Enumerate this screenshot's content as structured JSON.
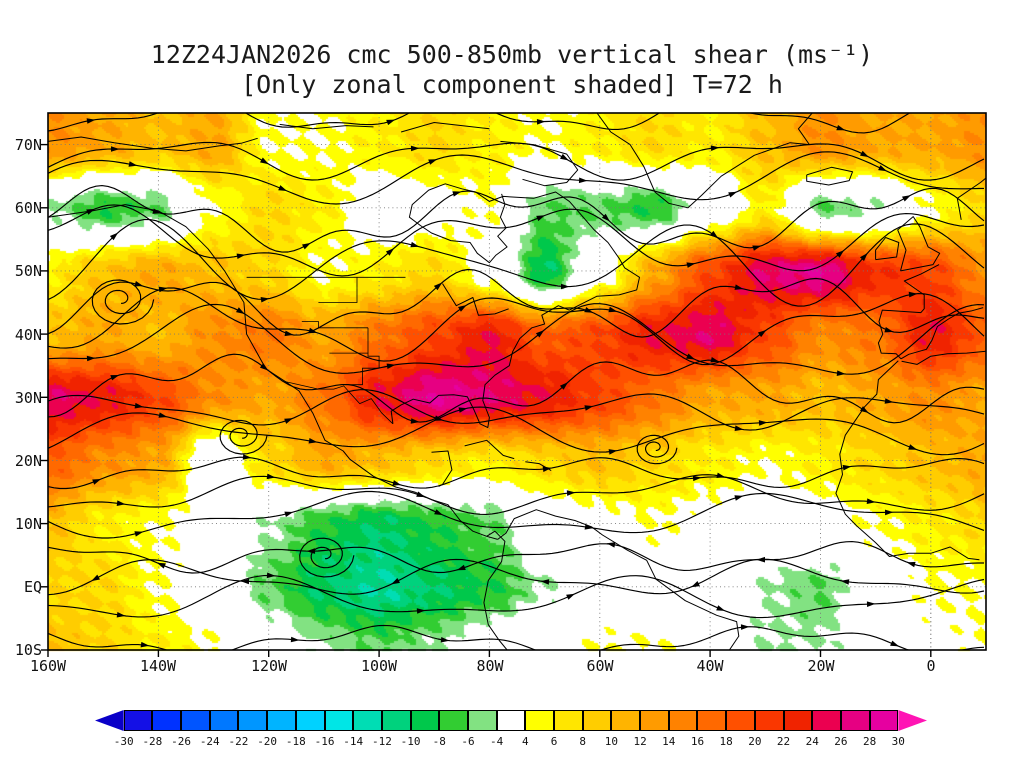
{
  "title": {
    "line1": "12Z24JAN2026 cmc 500-850mb vertical shear (ms⁻¹)",
    "line2": "[Only zonal component shaded] T=72 h"
  },
  "axes": {
    "lat_labels": [
      "70N",
      "60N",
      "50N",
      "40N",
      "30N",
      "20N",
      "10N",
      "EQ",
      "10S"
    ],
    "lon_labels": [
      "160W",
      "140W",
      "120W",
      "100W",
      "80W",
      "60W",
      "40W",
      "20W",
      "0"
    ]
  },
  "colorbar": {
    "tick_labels": [
      "-30",
      "-28",
      "-26",
      "-24",
      "-22",
      "-20",
      "-18",
      "-16",
      "-14",
      "-12",
      "-10",
      "-8",
      "-6",
      "-4",
      "4",
      "6",
      "8",
      "10",
      "12",
      "14",
      "16",
      "18",
      "20",
      "22",
      "24",
      "26",
      "28",
      "30"
    ],
    "colors": [
      "#0a00c8",
      "#1410e6",
      "#0032ff",
      "#0055ff",
      "#0078ff",
      "#0096ff",
      "#00b4ff",
      "#00d2ff",
      "#00e6e6",
      "#00ddb4",
      "#00d27d",
      "#00c84b",
      "#32cd32",
      "#82e282",
      "#ffffff",
      "#ffff00",
      "#ffe600",
      "#ffcd00",
      "#ffb400",
      "#ff9b00",
      "#ff8200",
      "#ff6900",
      "#ff5000",
      "#fa3700",
      "#f02300",
      "#eb0050",
      "#e60082",
      "#e600a0",
      "#ff14b4"
    ]
  },
  "chart_data": {
    "type": "heatmap",
    "title": "12Z24JAN2026 cmc 500-850mb vertical shear (ms⁻¹)",
    "subtitle": "[Only zonal component shaded] T=72 h",
    "model": "cmc",
    "field": "500-850mb vertical shear, zonal component shaded",
    "units": "ms⁻¹",
    "valid_time": "12Z24JAN2026",
    "forecast_hour": 72,
    "lon_range": [
      -160,
      10
    ],
    "lat_range": [
      -10,
      75
    ],
    "shading_levels": [
      -30,
      -28,
      -26,
      -24,
      -22,
      -20,
      -18,
      -16,
      -14,
      -12,
      -10,
      -8,
      -6,
      -4,
      4,
      6,
      8,
      10,
      12,
      14,
      16,
      18,
      20,
      22,
      24,
      26,
      28,
      30
    ],
    "overlay": "shear streamlines with arrowheads",
    "grid": {
      "lons": [
        -160,
        -150,
        -140,
        -130,
        -120,
        -110,
        -100,
        -90,
        -80,
        -70,
        -60,
        -50,
        -40,
        -30,
        -20,
        -10,
        0,
        10
      ],
      "lats": [
        70,
        60,
        50,
        40,
        30,
        20,
        10,
        0,
        -10
      ],
      "values_ms": [
        [
          14,
          12,
          10,
          12,
          4,
          4,
          6,
          8,
          6,
          4,
          6,
          8,
          6,
          10,
          14,
          12,
          12,
          14
        ],
        [
          -4,
          -8,
          -6,
          4,
          8,
          6,
          0,
          2,
          4,
          -6,
          -6,
          -8,
          0,
          6,
          -6,
          -4,
          4,
          8
        ],
        [
          6,
          10,
          12,
          10,
          8,
          4,
          6,
          8,
          2,
          -10,
          2,
          12,
          20,
          26,
          28,
          22,
          20,
          14
        ],
        [
          10,
          12,
          10,
          14,
          16,
          12,
          16,
          20,
          24,
          18,
          20,
          24,
          26,
          20,
          14,
          16,
          24,
          18
        ],
        [
          26,
          24,
          20,
          14,
          12,
          16,
          24,
          28,
          26,
          24,
          20,
          16,
          12,
          12,
          10,
          12,
          14,
          12
        ],
        [
          18,
          14,
          12,
          -2,
          8,
          12,
          10,
          8,
          6,
          8,
          10,
          8,
          6,
          4,
          6,
          8,
          10,
          12
        ],
        [
          10,
          6,
          4,
          2,
          -4,
          -8,
          -10,
          -8,
          -6,
          0,
          2,
          4,
          2,
          0,
          2,
          4,
          6,
          8
        ],
        [
          8,
          8,
          4,
          0,
          -6,
          -10,
          -12,
          -10,
          -8,
          -4,
          0,
          0,
          2,
          -4,
          -6,
          0,
          4,
          4
        ],
        [
          10,
          8,
          6,
          4,
          0,
          -4,
          -6,
          -4,
          0,
          2,
          4,
          4,
          2,
          -4,
          -4,
          0,
          2,
          4
        ]
      ]
    }
  }
}
